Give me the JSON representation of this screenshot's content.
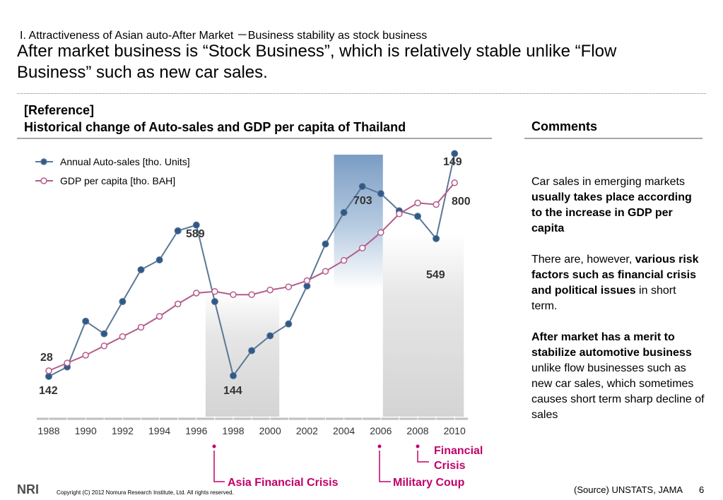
{
  "header": {
    "subtitle": "I. Attractiveness of Asian auto-After Market －Business stability as stock business",
    "headline": "After market business is “Stock Business”, which is relatively stable unlike “Flow Business” such as new car sales."
  },
  "reference": {
    "tag": "[Reference]",
    "title": "Historical change of Auto-sales and GDP per capita of Thailand"
  },
  "comments": {
    "heading": "Comments",
    "p1_plain": "Car sales in emerging markets ",
    "p1_bold": "usually takes place according to the increase in GDP per capita",
    "p2_plain": "There are, however, ",
    "p2_bold": "various risk factors such as financial crisis and political issues",
    "p2_tail": " in short term.",
    "p3_bold": "After market has a merit to stabilize automotive business",
    "p3_plain": " unlike flow businesses such as new car sales, which sometimes causes short term sharp decline of sales"
  },
  "chart_data": {
    "type": "line",
    "xlabel": "",
    "ylabel": "",
    "x": [
      1988,
      1989,
      1990,
      1991,
      1992,
      1993,
      1994,
      1995,
      1996,
      1997,
      1998,
      1999,
      2000,
      2001,
      2002,
      2003,
      2004,
      2005,
      2006,
      2007,
      2008,
      2009,
      2010
    ],
    "x_ticks": [
      1988,
      1990,
      1992,
      1994,
      1996,
      1998,
      2000,
      2002,
      2004,
      2006,
      2008,
      2010
    ],
    "series": [
      {
        "name": "Annual Auto-sales [tho. Units]",
        "color": "#5b7795",
        "marker_fill": "#2e5a8a",
        "values": [
          142,
          170,
          305,
          268,
          363,
          457,
          486,
          572,
          589,
          363,
          144,
          218,
          262,
          297,
          409,
          533,
          626,
          703,
          682,
          631,
          615,
          549,
          800
        ]
      },
      {
        "name": "GDP per capita [tho. BAH]",
        "color": "#b55a8a",
        "marker_fill": "#ffffff",
        "values": [
          28,
          33,
          38,
          44,
          50,
          56,
          63,
          71,
          78,
          79,
          77,
          77,
          80,
          82,
          86,
          92,
          99,
          107,
          117,
          129,
          136,
          135,
          149
        ]
      }
    ],
    "value_labels": [
      {
        "text": "28",
        "series": 1,
        "index": 0
      },
      {
        "text": "142",
        "series": 0,
        "index": 0
      },
      {
        "text": "589",
        "series": 0,
        "index": 8
      },
      {
        "text": "144",
        "series": 0,
        "index": 10
      },
      {
        "text": "703",
        "series": 0,
        "index": 17
      },
      {
        "text": "549",
        "series": 0,
        "index": 21
      },
      {
        "text": "149",
        "series": 1,
        "index": 22
      },
      {
        "text": "800",
        "series": 0,
        "index": 22
      }
    ],
    "highlight_periods": [
      {
        "start": 1997,
        "end": 2000,
        "label": "Asia Financial Crisis",
        "color": "#cccccc"
      },
      {
        "start": 2003.5,
        "end": 2006,
        "label": "Military Coup",
        "color": "#7f9ec2"
      },
      {
        "start": 2006,
        "end": 2010.5,
        "label": "Financial Crisis",
        "color": "#cccccc"
      }
    ],
    "annotation_color": "#c0006a",
    "legend_position": "top-left"
  },
  "footer": {
    "logo_text": "NRI",
    "copyright": "Copyright (C) 2012 Nomura Research Institute, Ltd. All rights reserved.",
    "source": "(Source) UNSTATS, JAMA",
    "page_number": "6"
  }
}
